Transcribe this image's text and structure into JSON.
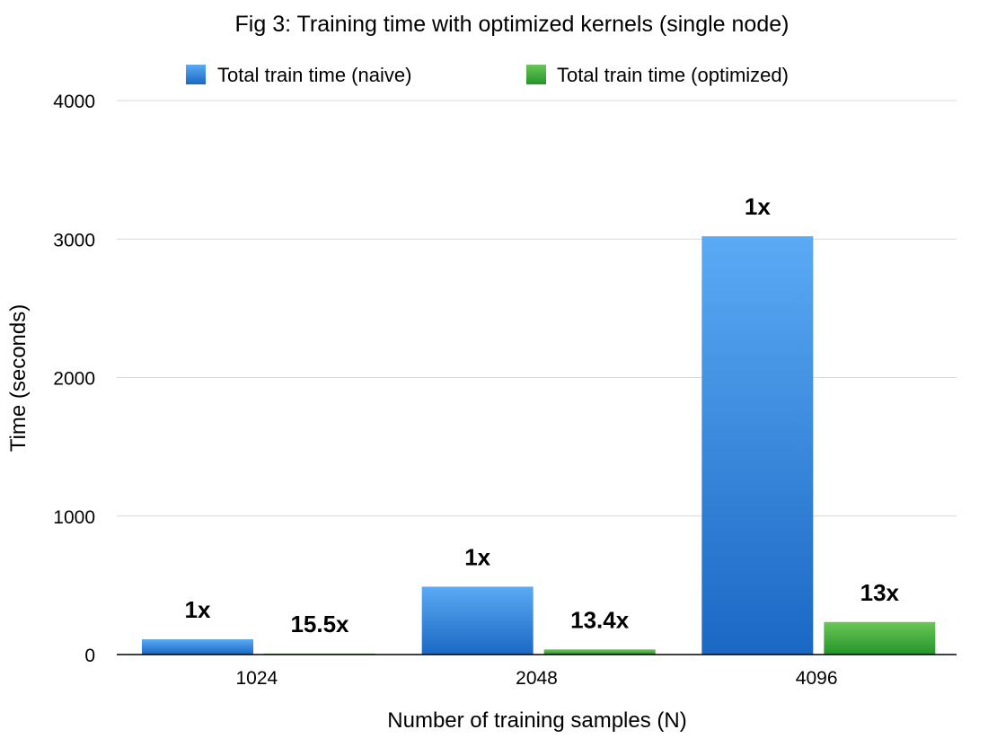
{
  "chart_data": {
    "type": "bar",
    "title": "Fig 3: Training time with optimized kernels (single node)",
    "xlabel": "Number of training samples (N)",
    "ylabel": "Time (seconds)",
    "categories": [
      "1024",
      "2048",
      "4096"
    ],
    "ylim": [
      0,
      4000
    ],
    "yticks": [
      0,
      1000,
      2000,
      3000,
      4000
    ],
    "grid": true,
    "legend_position": "top",
    "series": [
      {
        "name": "Total train time (naive)",
        "color": "#2f86dc",
        "values": [
          110,
          490,
          3020
        ],
        "labels": [
          "1x",
          "1x",
          "1x"
        ]
      },
      {
        "name": "Total train time (optimized)",
        "color": "#3da83a",
        "values": [
          7,
          37,
          235
        ],
        "labels": [
          "15.5x",
          "13.4x",
          "13x"
        ]
      }
    ]
  }
}
